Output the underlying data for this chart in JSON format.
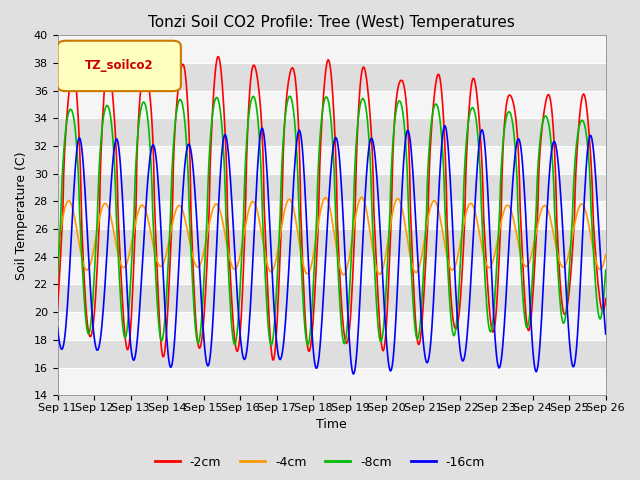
{
  "title": "Tonzi Soil CO2 Profile: Tree (West) Temperatures",
  "xlabel": "Time",
  "ylabel": "Soil Temperature (C)",
  "ylim": [
    14,
    40
  ],
  "yticks": [
    14,
    16,
    18,
    20,
    22,
    24,
    26,
    28,
    30,
    32,
    34,
    36,
    38,
    40
  ],
  "legend_label": "TZ_soilco2",
  "series_labels": [
    "-2cm",
    "-4cm",
    "-8cm",
    "-16cm"
  ],
  "series_colors": [
    "#ff0000",
    "#ff9900",
    "#00bb00",
    "#0000ff"
  ],
  "xtick_labels": [
    "Sep 11",
    "Sep 12",
    "Sep 13",
    "Sep 14",
    "Sep 15",
    "Sep 16",
    "Sep 17",
    "Sep 18",
    "Sep 19",
    "Sep 20",
    "Sep 21",
    "Sep 22",
    "Sep 23",
    "Sep 24",
    "Sep 25",
    "Sep 26"
  ],
  "bg_color": "#e0e0e0",
  "plot_bg": "#e8e8e8",
  "title_fontsize": 11,
  "axis_fontsize": 9,
  "tick_fontsize": 8,
  "linewidth": 1.2
}
